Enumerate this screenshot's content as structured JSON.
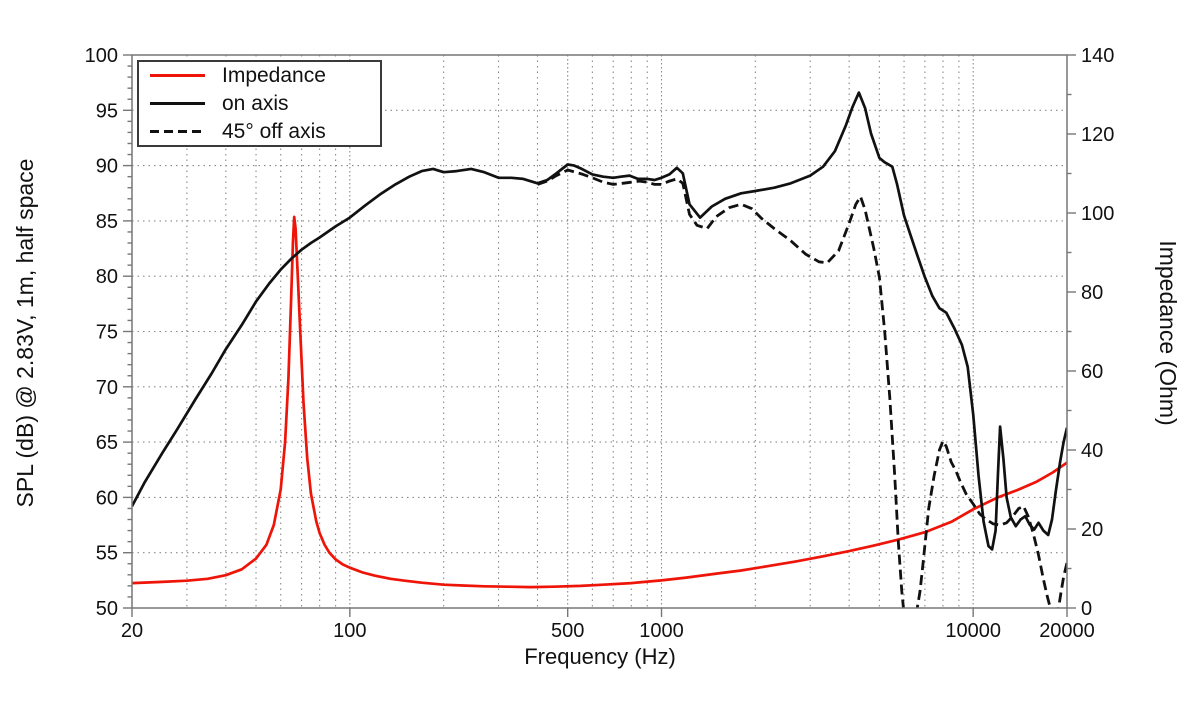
{
  "legend": {
    "items": [
      {
        "label": "Impedance",
        "style": "solid",
        "color": "#ee1408"
      },
      {
        "label": "on axis",
        "style": "solid",
        "color": "#111111"
      },
      {
        "label": "45° off axis",
        "style": "dashed",
        "color": "#111111"
      }
    ]
  },
  "colors": {
    "grid": "#8a8a8a",
    "axis": "#777777",
    "text": "#111111",
    "background": "#ffffff"
  },
  "chart_data": {
    "type": "line",
    "title": "",
    "x_axis": {
      "label": "Frequency (Hz)",
      "scale": "log",
      "min": 20,
      "max": 20000,
      "labeled_ticks": [
        20,
        100,
        500,
        1000,
        10000,
        20000
      ],
      "tick_labels": [
        "20",
        "100",
        "500",
        "1000",
        "10000",
        "20000"
      ],
      "minor_ticks": [
        30,
        40,
        50,
        60,
        70,
        80,
        90,
        200,
        300,
        400,
        600,
        700,
        800,
        900,
        2000,
        3000,
        4000,
        5000,
        6000,
        7000,
        8000,
        9000
      ]
    },
    "y_left": {
      "label": "SPL (dB) @ 2.83V, 1m, half space",
      "min": 50,
      "max": 100,
      "tick_step": 5,
      "minor_step": 1
    },
    "y_right": {
      "label": "Impedance (Ohm)",
      "min": 0,
      "max": 140,
      "tick_step": 20,
      "minor_step": 10
    },
    "grid": "dotted",
    "legend_position": "top-left",
    "series": [
      {
        "name": "Impedance",
        "axis": "right",
        "color": "#ee1408",
        "style": "solid",
        "unit": "Ohm",
        "points": [
          [
            20,
            6.3
          ],
          [
            25,
            6.6
          ],
          [
            30,
            6.9
          ],
          [
            35,
            7.4
          ],
          [
            40,
            8.3
          ],
          [
            45,
            9.8
          ],
          [
            50,
            12.5
          ],
          [
            54,
            16
          ],
          [
            57,
            21
          ],
          [
            60,
            30
          ],
          [
            62,
            42
          ],
          [
            63.5,
            58
          ],
          [
            64.8,
            78
          ],
          [
            65.7,
            93
          ],
          [
            66.3,
            99
          ],
          [
            67,
            96
          ],
          [
            68,
            85
          ],
          [
            69.5,
            68
          ],
          [
            71,
            52
          ],
          [
            73,
            38
          ],
          [
            75,
            29
          ],
          [
            78,
            22
          ],
          [
            80,
            19
          ],
          [
            83,
            16
          ],
          [
            86,
            14
          ],
          [
            90,
            12.3
          ],
          [
            95,
            11
          ],
          [
            100,
            10.2
          ],
          [
            110,
            9
          ],
          [
            120,
            8.2
          ],
          [
            135,
            7.4
          ],
          [
            150,
            6.9
          ],
          [
            170,
            6.4
          ],
          [
            200,
            5.9
          ],
          [
            230,
            5.7
          ],
          [
            270,
            5.5
          ],
          [
            320,
            5.4
          ],
          [
            380,
            5.3
          ],
          [
            450,
            5.4
          ],
          [
            550,
            5.6
          ],
          [
            650,
            5.9
          ],
          [
            800,
            6.3
          ],
          [
            1000,
            7.0
          ],
          [
            1200,
            7.7
          ],
          [
            1500,
            8.7
          ],
          [
            1800,
            9.5
          ],
          [
            2200,
            10.6
          ],
          [
            2700,
            11.8
          ],
          [
            3300,
            13.1
          ],
          [
            4000,
            14.4
          ],
          [
            4800,
            15.8
          ],
          [
            5800,
            17.4
          ],
          [
            7000,
            19.2
          ],
          [
            8500,
            21.8
          ],
          [
            10000,
            25.0
          ],
          [
            12000,
            28.0
          ],
          [
            14000,
            30.0
          ],
          [
            16000,
            32.0
          ],
          [
            18000,
            34.3
          ],
          [
            20000,
            36.8
          ]
        ]
      },
      {
        "name": "on axis",
        "axis": "left",
        "color": "#111111",
        "style": "solid",
        "unit": "dB",
        "points": [
          [
            20,
            59.2
          ],
          [
            22,
            61.4
          ],
          [
            25,
            64.0
          ],
          [
            28,
            66.2
          ],
          [
            32,
            68.9
          ],
          [
            36,
            71.2
          ],
          [
            40,
            73.4
          ],
          [
            45,
            75.6
          ],
          [
            50,
            77.7
          ],
          [
            55,
            79.3
          ],
          [
            60,
            80.6
          ],
          [
            65,
            81.6
          ],
          [
            70,
            82.4
          ],
          [
            75,
            83.0
          ],
          [
            80,
            83.5
          ],
          [
            90,
            84.5
          ],
          [
            100,
            85.3
          ],
          [
            112,
            86.4
          ],
          [
            125,
            87.4
          ],
          [
            140,
            88.3
          ],
          [
            155,
            89.0
          ],
          [
            170,
            89.5
          ],
          [
            185,
            89.7
          ],
          [
            200,
            89.4
          ],
          [
            220,
            89.5
          ],
          [
            245,
            89.7
          ],
          [
            270,
            89.4
          ],
          [
            300,
            88.9
          ],
          [
            330,
            88.9
          ],
          [
            360,
            88.8
          ],
          [
            400,
            88.4
          ],
          [
            430,
            88.7
          ],
          [
            460,
            89.3
          ],
          [
            500,
            90.1
          ],
          [
            525,
            90.0
          ],
          [
            555,
            89.7
          ],
          [
            600,
            89.2
          ],
          [
            650,
            89.0
          ],
          [
            700,
            88.9
          ],
          [
            740,
            89.0
          ],
          [
            790,
            89.1
          ],
          [
            840,
            88.8
          ],
          [
            900,
            88.8
          ],
          [
            950,
            88.7
          ],
          [
            1000,
            88.9
          ],
          [
            1060,
            89.2
          ],
          [
            1120,
            89.8
          ],
          [
            1170,
            89.3
          ],
          [
            1230,
            86.5
          ],
          [
            1330,
            85.3
          ],
          [
            1450,
            86.3
          ],
          [
            1600,
            87.0
          ],
          [
            1800,
            87.5
          ],
          [
            2000,
            87.7
          ],
          [
            2300,
            88.0
          ],
          [
            2600,
            88.4
          ],
          [
            3000,
            89.1
          ],
          [
            3300,
            89.9
          ],
          [
            3600,
            91.3
          ],
          [
            3900,
            93.6
          ],
          [
            4100,
            95.3
          ],
          [
            4300,
            96.6
          ],
          [
            4500,
            95.2
          ],
          [
            4700,
            92.9
          ],
          [
            5000,
            90.7
          ],
          [
            5200,
            90.3
          ],
          [
            5500,
            89.9
          ],
          [
            5700,
            88.3
          ],
          [
            6000,
            85.5
          ],
          [
            6300,
            83.7
          ],
          [
            6600,
            82.0
          ],
          [
            7000,
            79.9
          ],
          [
            7400,
            78.2
          ],
          [
            7800,
            77.1
          ],
          [
            8200,
            76.7
          ],
          [
            8700,
            75.3
          ],
          [
            9200,
            73.8
          ],
          [
            9600,
            71.8
          ],
          [
            10000,
            67.5
          ],
          [
            10400,
            62.0
          ],
          [
            10800,
            57.8
          ],
          [
            11200,
            55.6
          ],
          [
            11500,
            55.3
          ],
          [
            11800,
            57.0
          ],
          [
            12000,
            62.0
          ],
          [
            12200,
            66.4
          ],
          [
            12500,
            63.5
          ],
          [
            12800,
            60.0
          ],
          [
            13200,
            58.2
          ],
          [
            13700,
            57.4
          ],
          [
            14200,
            58.0
          ],
          [
            14700,
            58.3
          ],
          [
            15200,
            57.5
          ],
          [
            15700,
            57.1
          ],
          [
            16200,
            57.7
          ],
          [
            16800,
            57.0
          ],
          [
            17400,
            56.6
          ],
          [
            17900,
            58.0
          ],
          [
            18400,
            60.5
          ],
          [
            19000,
            63.2
          ],
          [
            19500,
            65.0
          ],
          [
            20000,
            66.3
          ]
        ]
      },
      {
        "name": "45° off axis",
        "axis": "left",
        "color": "#111111",
        "style": "dashed",
        "unit": "dB",
        "points": [
          [
            400,
            88.3
          ],
          [
            430,
            88.6
          ],
          [
            460,
            89.1
          ],
          [
            500,
            89.6
          ],
          [
            530,
            89.4
          ],
          [
            560,
            89.2
          ],
          [
            600,
            88.9
          ],
          [
            650,
            88.5
          ],
          [
            700,
            88.3
          ],
          [
            750,
            88.4
          ],
          [
            800,
            88.5
          ],
          [
            850,
            88.6
          ],
          [
            900,
            88.5
          ],
          [
            950,
            88.3
          ],
          [
            1000,
            88.3
          ],
          [
            1060,
            88.6
          ],
          [
            1120,
            88.8
          ],
          [
            1170,
            88.4
          ],
          [
            1230,
            85.6
          ],
          [
            1300,
            84.6
          ],
          [
            1400,
            84.3
          ],
          [
            1500,
            85.4
          ],
          [
            1650,
            86.2
          ],
          [
            1800,
            86.5
          ],
          [
            1950,
            86.1
          ],
          [
            2100,
            85.2
          ],
          [
            2300,
            84.3
          ],
          [
            2600,
            83.2
          ],
          [
            2900,
            82.0
          ],
          [
            3200,
            81.3
          ],
          [
            3400,
            81.2
          ],
          [
            3700,
            82.3
          ],
          [
            4000,
            84.8
          ],
          [
            4200,
            86.5
          ],
          [
            4350,
            87.2
          ],
          [
            4500,
            86.0
          ],
          [
            4800,
            82.5
          ],
          [
            5000,
            79.9
          ],
          [
            5200,
            75.0
          ],
          [
            5400,
            69.0
          ],
          [
            5600,
            62.0
          ],
          [
            5750,
            56.0
          ],
          [
            5900,
            51.5
          ],
          [
            6000,
            49.5
          ],
          [
            6200,
            48.3
          ],
          [
            6400,
            48.3
          ],
          [
            6600,
            49.8
          ],
          [
            6750,
            51.5
          ],
          [
            6900,
            54.0
          ],
          [
            7200,
            59.0
          ],
          [
            7500,
            62.0
          ],
          [
            7800,
            64.3
          ],
          [
            8000,
            65.1
          ],
          [
            8200,
            64.6
          ],
          [
            8500,
            63.2
          ],
          [
            8800,
            62.4
          ],
          [
            9100,
            61.4
          ],
          [
            9500,
            60.3
          ],
          [
            10000,
            59.4
          ],
          [
            10500,
            58.5
          ],
          [
            11000,
            58.0
          ],
          [
            11600,
            57.6
          ],
          [
            12200,
            57.5
          ],
          [
            12800,
            57.7
          ],
          [
            13400,
            58.3
          ],
          [
            14000,
            59.0
          ],
          [
            14500,
            59.2
          ],
          [
            15000,
            58.3
          ],
          [
            15600,
            56.7
          ],
          [
            16200,
            54.8
          ],
          [
            16800,
            52.6
          ],
          [
            17300,
            51.0
          ],
          [
            17800,
            49.7
          ],
          [
            18200,
            48.9
          ],
          [
            18700,
            49.6
          ],
          [
            19100,
            51.3
          ],
          [
            19500,
            52.8
          ],
          [
            20000,
            54.1
          ]
        ]
      }
    ]
  }
}
